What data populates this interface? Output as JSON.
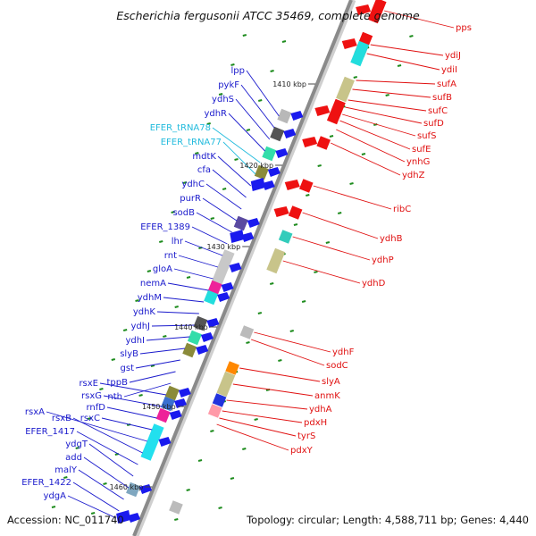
{
  "title": "Escherichia fergusonii ATCC 35469, complete genome",
  "accession": "Accession: NC_011740",
  "summary": "Topology: circular; Length: 4,588,711 bp; Genes: 4,440",
  "colors": {
    "forward_label": "#1a1acc",
    "reverse_label": "#e01010",
    "trna_label": "#22bbdd",
    "forward_gene": "#1a1aee",
    "reverse_gene": "#ee1111",
    "backbone": "#8a8a8a",
    "gc_tick": "#1e8c1e"
  },
  "scale_labels": [
    "1410 kbp",
    "1420 kbp",
    "1430 kbp",
    "1440 kbp",
    "1450 kbp",
    "1460 kbp"
  ],
  "forward_genes": [
    "lpp",
    "pykF",
    "ydhS",
    "ydhR",
    "EFER_tRNA78",
    "EFER_tRNA77",
    "mdtK",
    "cfa",
    "ydhC",
    "purR",
    "sodB",
    "EFER_1389",
    "lhr",
    "rnt",
    "gloA",
    "nemA",
    "ydhM",
    "ydhK",
    "ydhJ",
    "ydhI",
    "slyB",
    "gst",
    "tppB",
    "nth",
    "rsxE",
    "rsxG",
    "rnfD",
    "rsxC",
    "rsxA",
    "rsxB",
    "EFER_1417",
    "ydgT",
    "add",
    "malY",
    "EFER_1422",
    "ydgA"
  ],
  "reverse_genes": [
    "pps",
    "ydiJ",
    "ydiI",
    "sufA",
    "sufB",
    "sufC",
    "sufD",
    "sufS",
    "sufE",
    "ynhG",
    "ydhZ",
    "ribC",
    "ydhB",
    "ydhP",
    "ydhD",
    "ydhF",
    "sodC",
    "slyA",
    "anmK",
    "ydhA",
    "pdxH",
    "tyrS",
    "pdxY"
  ]
}
